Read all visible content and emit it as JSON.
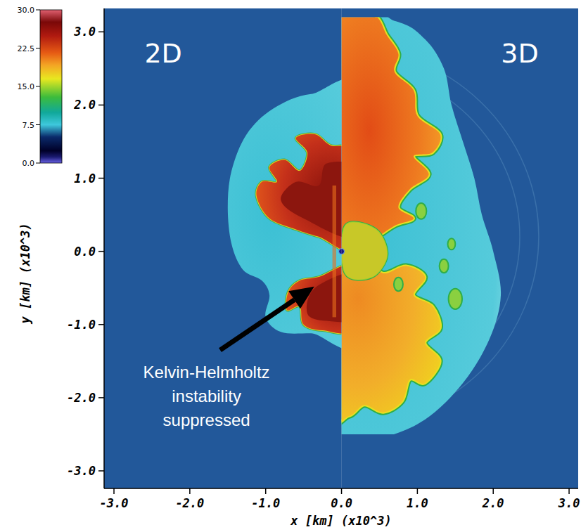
{
  "chart_data": {
    "type": "image",
    "panels": [
      "2D",
      "3D"
    ],
    "annotation": "Kelvin-Helmholtz instability suppressed",
    "x_label": "x [km] (x10^3)",
    "y_label": "y [km] (x10^3)",
    "xlim": [
      -3.13,
      3.12
    ],
    "ylim": [
      -3.24,
      3.32
    ],
    "xticks": [
      {
        "value": -3,
        "label": "-3.0"
      },
      {
        "value": -2,
        "label": "-2.0"
      },
      {
        "value": -1,
        "label": "-1.0"
      },
      {
        "value": 0,
        "label": "0.0"
      },
      {
        "value": 1,
        "label": "1.0"
      },
      {
        "value": 2,
        "label": "2.0"
      },
      {
        "value": 3,
        "label": "3.0"
      }
    ],
    "yticks": [
      {
        "value": 3,
        "label": "3.0"
      },
      {
        "value": 2,
        "label": "2.0"
      },
      {
        "value": 1,
        "label": "1.0"
      },
      {
        "value": 0,
        "label": "0.0"
      },
      {
        "value": -1,
        "label": "-1.0"
      },
      {
        "value": -2,
        "label": "-2.0"
      },
      {
        "value": -3,
        "label": "-3.0"
      }
    ],
    "colorbar_range": [
      0,
      30
    ],
    "colorbar_ticks": [
      {
        "value": 0,
        "label": "0.0"
      },
      7.5,
      {
        "value": 15,
        "label": "15.0"
      },
      22.5,
      {
        "value": 30,
        "label": "30.0"
      }
    ]
  }
}
